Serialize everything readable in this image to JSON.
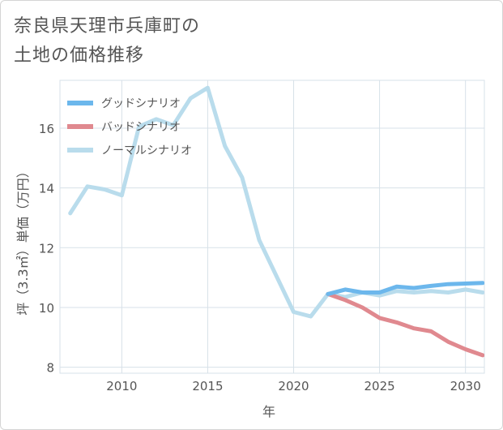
{
  "title": {
    "line1": "奈良県天理市兵庫町の",
    "line2": "土地の価格推移"
  },
  "chart_data": {
    "type": "line",
    "title": "奈良県天理市兵庫町の土地の価格推移",
    "xlabel": "年",
    "ylabel": "坪（3.3㎡）単価（万円）",
    "xlim": [
      2006.4,
      2031.1
    ],
    "ylim": [
      7.8,
      17.6
    ],
    "x_ticks": [
      2010,
      2015,
      2020,
      2025,
      2030
    ],
    "y_ticks": [
      8,
      10,
      12,
      14,
      16
    ],
    "grid": true,
    "legend": "top-left",
    "series": [
      {
        "name": "グッドシナリオ",
        "color": "#6cb7ec",
        "x": [
          2022,
          2023,
          2024,
          2025,
          2026,
          2027,
          2028,
          2029,
          2030,
          2031
        ],
        "y": [
          10.45,
          10.6,
          10.5,
          10.5,
          10.7,
          10.65,
          10.72,
          10.78,
          10.8,
          10.82
        ]
      },
      {
        "name": "バッドシナリオ",
        "color": "#e0898f",
        "x": [
          2022,
          2023,
          2024,
          2025,
          2026,
          2027,
          2028,
          2029,
          2030,
          2031
        ],
        "y": [
          10.45,
          10.25,
          10.0,
          9.65,
          9.5,
          9.3,
          9.2,
          8.85,
          8.6,
          8.4
        ]
      },
      {
        "name": "ノーマルシナリオ",
        "color": "#b9dcec",
        "x": [
          2007,
          2008,
          2009,
          2010,
          2011,
          2012,
          2013,
          2014,
          2015,
          2016,
          2017,
          2018,
          2019,
          2020,
          2021,
          2022,
          2023,
          2024,
          2025,
          2026,
          2027,
          2028,
          2029,
          2030,
          2031
        ],
        "y": [
          13.15,
          14.05,
          13.95,
          13.75,
          16.05,
          16.3,
          16.1,
          17.0,
          17.35,
          15.4,
          14.35,
          12.25,
          11.05,
          9.85,
          9.7,
          10.45,
          10.35,
          10.5,
          10.4,
          10.55,
          10.5,
          10.55,
          10.5,
          10.6,
          10.5
        ]
      }
    ]
  }
}
